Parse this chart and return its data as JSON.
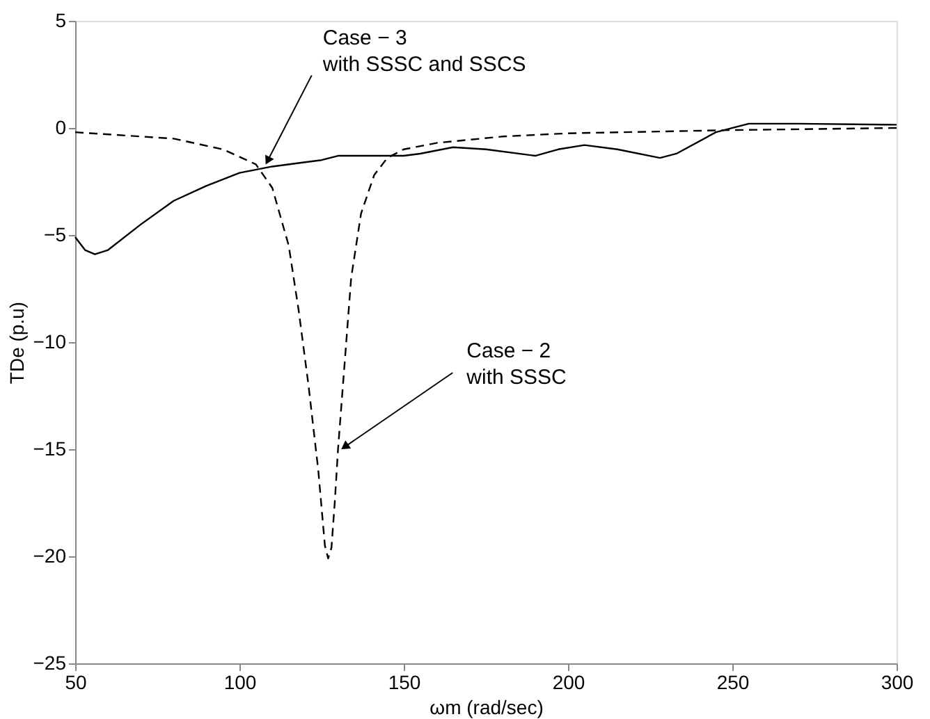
{
  "chart_data": {
    "type": "line",
    "xlabel": "ωm (rad/sec)",
    "ylabel": "TDe (p.u)",
    "xlim": [
      50,
      300
    ],
    "xticks": [
      50,
      100,
      150,
      200,
      250,
      300
    ],
    "ylim": [
      -25,
      5
    ],
    "yticks": [
      -25,
      -20,
      -15,
      -10,
      -5,
      0,
      5
    ],
    "grid": false,
    "marker": "none",
    "series": [
      {
        "color": "#000000",
        "line_style": "solid",
        "x": [
          50,
          53,
          56,
          60,
          70,
          80,
          90,
          100,
          110,
          120,
          125,
          130,
          140,
          150,
          155,
          165,
          175,
          190,
          197,
          205,
          215,
          228,
          233,
          245,
          255,
          270,
          300
        ],
        "values": [
          -5.1,
          -5.7,
          -5.9,
          -5.7,
          -4.5,
          -3.4,
          -2.7,
          -2.1,
          -1.8,
          -1.6,
          -1.5,
          -1.3,
          -1.3,
          -1.3,
          -1.2,
          -0.9,
          -1.0,
          -1.3,
          -1.0,
          -0.8,
          -1.0,
          -1.4,
          -1.2,
          -0.2,
          0.2,
          0.2,
          0.15
        ]
      },
      {
        "color": "#000000",
        "line_style": "dashed",
        "x": [
          50,
          80,
          95,
          105,
          110,
          115,
          118,
          121,
          124,
          126,
          127,
          128,
          129,
          130,
          132,
          134,
          137,
          141,
          145,
          150,
          160,
          180,
          200,
          250,
          300
        ],
        "values": [
          -0.2,
          -0.5,
          -1.0,
          -1.7,
          -2.8,
          -5.5,
          -8.5,
          -12,
          -16,
          -19.5,
          -20.1,
          -19.6,
          -17.5,
          -15,
          -11,
          -7,
          -4,
          -2.2,
          -1.4,
          -1.0,
          -0.7,
          -0.4,
          -0.25,
          -0.1,
          0
        ]
      }
    ],
    "annotations": [
      {
        "text": "Case − 3\nwith SSSC and SSCS",
        "x": 108,
        "y": -1.7
      },
      {
        "text": "Case − 2\nwith SSSC",
        "x": 131,
        "y": -15
      }
    ]
  }
}
